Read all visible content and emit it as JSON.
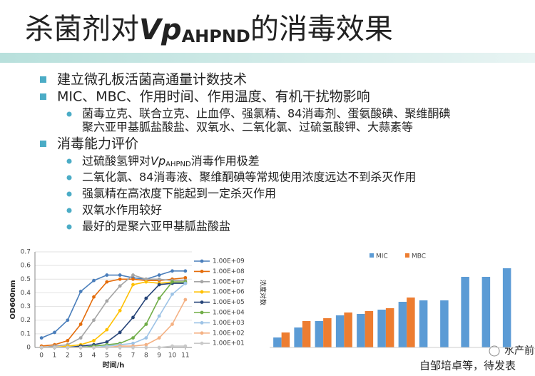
{
  "slide": {
    "title": [
      "杀菌剂对",
      "Vp",
      "AHPND",
      "的消毒效果"
    ],
    "bullets": [
      {
        "text": "建立微孔板活菌高通量计数技术",
        "items": []
      },
      {
        "text": "MIC、MBC、作用时间、作用温度、有机干扰物影响",
        "items": [
          [
            "菌毒立克、联合立克、止血停、强氯精、84消毒剂、蛋氨酸碘、聚维酮碘",
            "聚六亚甲基胍盐酸盐、双氧水、二氧化氯、过硫氢酸钾、大蒜素等"
          ]
        ]
      },
      {
        "text": "消毒能力评价",
        "items": [
          [
            "过硫酸氢钾对",
            "Vp",
            "AHPND",
            "消毒作用极差"
          ],
          [
            "二氧化氯、84消毒液、聚维酮碘等常规使用浓度远达不到杀灭作用"
          ],
          [
            "强氯精在高浓度下能起到一定杀灭作用"
          ],
          [
            "双氧水作用较好"
          ],
          [
            "最好的是聚六亚甲基胍盐酸盐"
          ]
        ]
      }
    ],
    "watermark": "水产前沿",
    "footer": "自邹培卓等，待发表"
  },
  "chart_data": [
    {
      "type": "line",
      "x_label": "时间/h",
      "y_label": "OD600nm",
      "x": [
        0,
        1,
        2,
        3,
        4,
        5,
        6,
        7,
        8,
        9,
        10,
        11
      ],
      "xlim": [
        -0.5,
        11.5
      ],
      "xticks": [
        0,
        1,
        2,
        3,
        4,
        5,
        6,
        7,
        8,
        9,
        10,
        11
      ],
      "ylim": [
        0,
        0.7
      ],
      "yticks": [
        0,
        0.1,
        0.2,
        0.3,
        0.4,
        0.5,
        0.6,
        0.7
      ],
      "grid": true,
      "legend": "right",
      "series": [
        {
          "name": "1.00E+09",
          "color": "#4a7ebb",
          "values": [
            0.07,
            0.11,
            0.2,
            0.41,
            0.49,
            0.53,
            0.53,
            0.51,
            0.5,
            0.53,
            0.56,
            0.56
          ]
        },
        {
          "name": "1.00E+08",
          "color": "#e46c0a",
          "values": [
            0.01,
            0.02,
            0.05,
            0.17,
            0.37,
            0.48,
            0.5,
            0.5,
            0.49,
            0.49,
            0.5,
            0.51
          ]
        },
        {
          "name": "1.00E+07",
          "color": "#a5a5a5",
          "values": [
            0,
            0.01,
            0.02,
            0.07,
            0.2,
            0.34,
            0.45,
            0.53,
            0.5,
            0.5,
            0.49,
            0.49
          ]
        },
        {
          "name": "1.00E+06",
          "color": "#ffc000",
          "values": [
            0,
            0,
            0.01,
            0.02,
            0.05,
            0.13,
            0.27,
            0.46,
            0.48,
            0.47,
            0.48,
            0.48
          ]
        },
        {
          "name": "1.00E+05",
          "color": "#264478",
          "values": [
            0,
            0,
            0,
            0.01,
            0.02,
            0.04,
            0.11,
            0.22,
            0.36,
            0.46,
            0.47,
            0.47
          ]
        },
        {
          "name": "1.00E+04",
          "color": "#70ad47",
          "values": [
            0,
            0,
            0,
            0,
            0.01,
            0.02,
            0.03,
            0.07,
            0.17,
            0.36,
            0.48,
            0.48
          ]
        },
        {
          "name": "1.00E+03",
          "color": "#9dc3e6",
          "values": [
            0,
            0,
            0,
            0,
            0,
            0.01,
            0.02,
            0.03,
            0.07,
            0.23,
            0.39,
            0.47
          ]
        },
        {
          "name": "1.00E+02",
          "color": "#f4b183",
          "values": [
            0,
            0,
            0,
            0,
            0,
            0,
            0.01,
            0.01,
            0.02,
            0.07,
            0.17,
            0.35
          ]
        },
        {
          "name": "1.00E+01",
          "color": "#c9c9c9",
          "values": [
            0,
            0,
            0,
            0,
            0,
            0,
            0,
            0,
            0,
            0,
            0.01,
            0.01
          ]
        }
      ]
    },
    {
      "type": "bar",
      "y_label": "浓度对数",
      "legend": "top",
      "categories": [
        null,
        null,
        null,
        null,
        null,
        null,
        null,
        null,
        null,
        null,
        null,
        null
      ],
      "ylim": [
        0,
        130
      ],
      "series": [
        {
          "name": "MIC",
          "color": "#5b9bd5",
          "values": [
            14,
            28,
            37,
            45,
            47,
            53,
            64,
            66,
            66,
            99,
            99,
            111
          ]
        },
        {
          "name": "MBC",
          "color": "#ed7d31",
          "values": [
            21,
            37,
            41,
            49,
            51,
            55,
            70,
            null,
            null,
            null,
            null,
            null
          ]
        }
      ]
    }
  ]
}
